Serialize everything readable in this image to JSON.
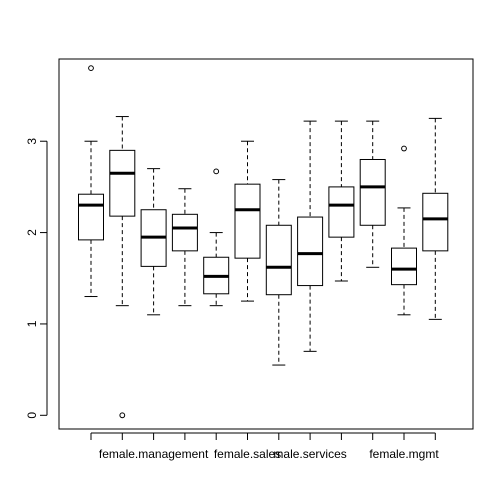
{
  "chart_data": {
    "type": "box",
    "title": "",
    "xlabel": "",
    "ylabel": "",
    "ylim": [
      -0.15,
      3.9
    ],
    "yticks": [
      0,
      1,
      2,
      3
    ],
    "x_tick_labels": [
      "female.management",
      "female.sales",
      "male.services",
      "female.mgmt"
    ],
    "x_tick_label_positions": [
      3,
      6,
      8,
      11
    ],
    "grid": false,
    "legend": "none",
    "boxes": [
      {
        "x": 1,
        "whisker_low": 1.3,
        "q1": 1.92,
        "median": 2.3,
        "q3": 2.42,
        "whisker_high": 3.0,
        "outliers": [
          3.8
        ]
      },
      {
        "x": 2,
        "whisker_low": 1.2,
        "q1": 2.18,
        "median": 2.65,
        "q3": 2.9,
        "whisker_high": 3.27,
        "outliers": [
          0.0
        ]
      },
      {
        "x": 3,
        "whisker_low": 1.1,
        "q1": 1.63,
        "median": 1.95,
        "q3": 2.25,
        "whisker_high": 2.7,
        "outliers": []
      },
      {
        "x": 4,
        "whisker_low": 1.2,
        "q1": 1.8,
        "median": 2.05,
        "q3": 2.2,
        "whisker_high": 2.48,
        "outliers": []
      },
      {
        "x": 5,
        "whisker_low": 1.2,
        "q1": 1.33,
        "median": 1.52,
        "q3": 1.73,
        "whisker_high": 2.0,
        "outliers": [
          2.67
        ]
      },
      {
        "x": 6,
        "whisker_low": 1.25,
        "q1": 1.72,
        "median": 2.25,
        "q3": 2.53,
        "whisker_high": 3.0,
        "outliers": []
      },
      {
        "x": 7,
        "whisker_low": 0.55,
        "q1": 1.32,
        "median": 1.62,
        "q3": 2.08,
        "whisker_high": 2.58,
        "outliers": []
      },
      {
        "x": 8,
        "whisker_low": 0.7,
        "q1": 1.42,
        "median": 1.77,
        "q3": 2.17,
        "whisker_high": 3.22,
        "outliers": []
      },
      {
        "x": 9,
        "whisker_low": 1.47,
        "q1": 1.95,
        "median": 2.3,
        "q3": 2.5,
        "whisker_high": 3.22,
        "outliers": []
      },
      {
        "x": 10,
        "whisker_low": 1.62,
        "q1": 2.08,
        "median": 2.5,
        "q3": 2.8,
        "whisker_high": 3.22,
        "outliers": []
      },
      {
        "x": 11,
        "whisker_low": 1.1,
        "q1": 1.43,
        "median": 1.6,
        "q3": 1.83,
        "whisker_high": 2.27,
        "outliers": [
          2.92
        ]
      },
      {
        "x": 12,
        "whisker_low": 1.05,
        "q1": 1.8,
        "median": 2.15,
        "q3": 2.43,
        "whisker_high": 3.25,
        "outliers": []
      }
    ]
  }
}
